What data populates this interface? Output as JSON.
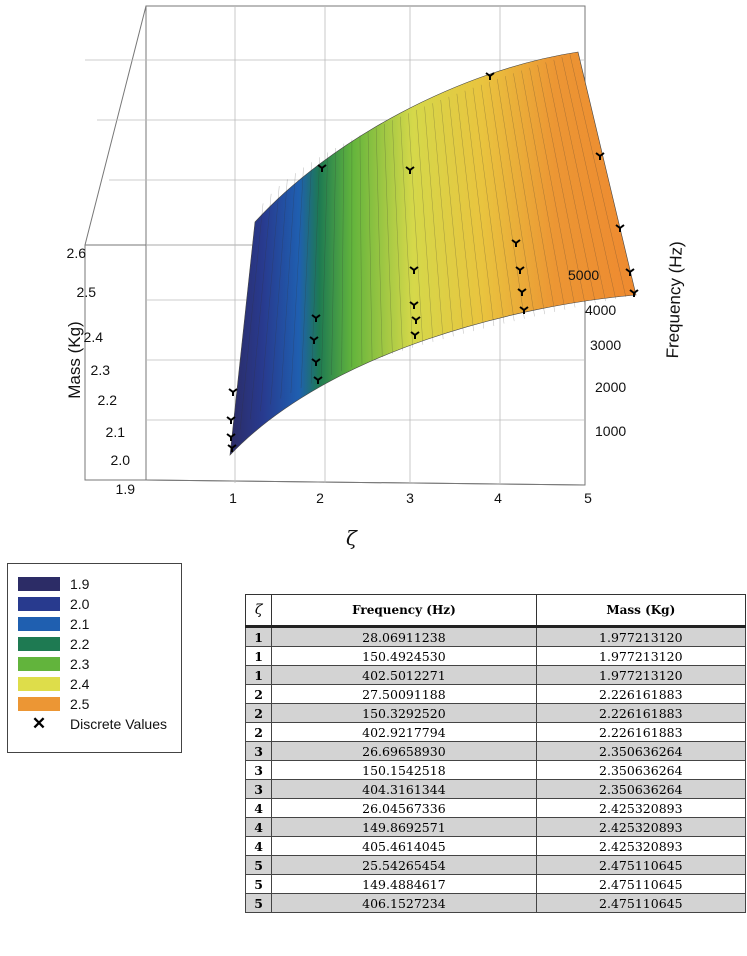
{
  "chart_data": {
    "type": "surface3d",
    "x_axis": {
      "label": "ζ",
      "ticks": [
        "1",
        "2",
        "3",
        "4",
        "5"
      ],
      "range": [
        1,
        5
      ]
    },
    "y_axis": {
      "label": "Frequency (Hz)",
      "ticks": [
        "1000",
        "2000",
        "3000",
        "4000",
        "5000"
      ],
      "range": [
        0,
        5000
      ]
    },
    "z_axis": {
      "label": "Mass (Kg)",
      "ticks": [
        "1.9",
        "2.0",
        "2.1",
        "2.2",
        "2.3",
        "2.4",
        "2.5",
        "2.6"
      ],
      "range": [
        1.9,
        2.6
      ]
    },
    "legend": {
      "items": [
        {
          "label": "1.9",
          "color": "#2c2c66"
        },
        {
          "label": "2.0",
          "color": "#283a8e"
        },
        {
          "label": "2.1",
          "color": "#1f5fb0"
        },
        {
          "label": "2.2",
          "color": "#1e7a52"
        },
        {
          "label": "2.3",
          "color": "#62b43c"
        },
        {
          "label": "2.4",
          "color": "#dedd4a"
        },
        {
          "label": "2.5",
          "color": "#ec9634"
        }
      ],
      "marker_label": "Discrete Values",
      "marker_symbol": "✕"
    },
    "table": {
      "columns": [
        "ζ",
        "Frequency (Hz)",
        "Mass (Kg)"
      ],
      "rows": [
        [
          "1",
          "28.06911238",
          "1.977213120"
        ],
        [
          "1",
          "150.4924530",
          "1.977213120"
        ],
        [
          "1",
          "402.5012271",
          "1.977213120"
        ],
        [
          "2",
          "27.50091188",
          "2.226161883"
        ],
        [
          "2",
          "150.3292520",
          "2.226161883"
        ],
        [
          "2",
          "402.9217794",
          "2.226161883"
        ],
        [
          "3",
          "26.69658930",
          "2.350636264"
        ],
        [
          "3",
          "150.1542518",
          "2.350636264"
        ],
        [
          "3",
          "404.3161344",
          "2.350636264"
        ],
        [
          "4",
          "26.04567336",
          "2.425320893"
        ],
        [
          "4",
          "149.8692571",
          "2.425320893"
        ],
        [
          "4",
          "405.4614045",
          "2.425320893"
        ],
        [
          "5",
          "25.54265454",
          "2.475110645"
        ],
        [
          "5",
          "149.4884617",
          "2.475110645"
        ],
        [
          "5",
          "406.1527234",
          "2.475110645"
        ]
      ]
    }
  }
}
